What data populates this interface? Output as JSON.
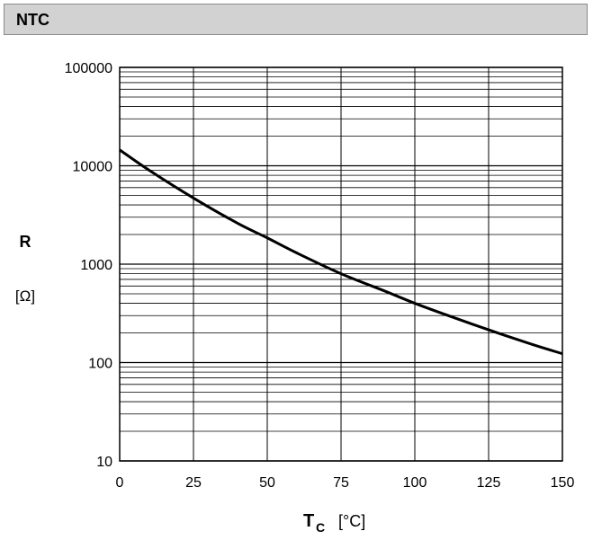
{
  "header": {
    "title": "NTC"
  },
  "chart_data": {
    "type": "line",
    "title": "NTC",
    "ylabel": "R",
    "ylabel_unit": "[Ω]",
    "xlabel": "T",
    "xlabel_sub": "C",
    "xlabel_unit": "[°C]",
    "x_ticks": [
      0,
      25,
      50,
      75,
      100,
      125,
      150
    ],
    "y_ticks": [
      10,
      100,
      1000,
      10000,
      100000
    ],
    "y_tick_labels": [
      "10",
      "100",
      "1000",
      "10000",
      "100000"
    ],
    "xlim": [
      0,
      150
    ],
    "ylim": [
      10,
      100000
    ],
    "y_scale": "log",
    "grid": true,
    "series": [
      {
        "x": [
          0,
          10,
          25,
          40,
          50,
          60,
          75,
          90,
          100,
          110,
          125,
          140,
          150
        ],
        "y": [
          14500,
          9000,
          4700,
          2600,
          1850,
          1300,
          800,
          530,
          400,
          310,
          215,
          152,
          123
        ]
      }
    ],
    "colors": {
      "line": "#000000",
      "grid": "#000000"
    }
  }
}
